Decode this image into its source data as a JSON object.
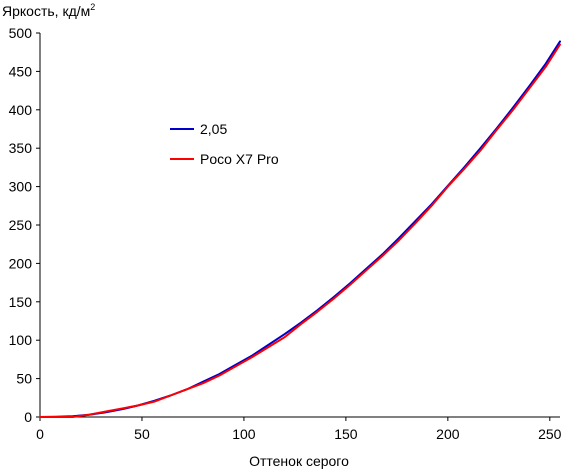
{
  "chart_data": {
    "type": "line",
    "ylabel": "Яркость, кд/м",
    "ylabel_sup": "2",
    "xlabel": "Оттенок серого",
    "xlim": [
      0,
      255
    ],
    "ylim": [
      0,
      500
    ],
    "x_ticks": [
      0,
      50,
      100,
      150,
      200,
      250
    ],
    "y_ticks": [
      0,
      50,
      100,
      150,
      200,
      250,
      300,
      350,
      400,
      450,
      500
    ],
    "grid": false,
    "legend_position": "upper-left",
    "series": [
      {
        "name": "2,05",
        "color": "#0000cc",
        "points": [
          [
            0,
            0
          ],
          [
            8,
            0.3
          ],
          [
            16,
            1
          ],
          [
            24,
            3
          ],
          [
            32,
            6
          ],
          [
            40,
            10
          ],
          [
            48,
            15
          ],
          [
            56,
            21
          ],
          [
            64,
            28
          ],
          [
            72,
            36
          ],
          [
            80,
            46
          ],
          [
            88,
            56
          ],
          [
            96,
            68
          ],
          [
            104,
            80
          ],
          [
            112,
            94
          ],
          [
            120,
            108
          ],
          [
            128,
            123
          ],
          [
            136,
            139
          ],
          [
            144,
            156
          ],
          [
            152,
            174
          ],
          [
            160,
            193
          ],
          [
            168,
            212
          ],
          [
            176,
            233
          ],
          [
            184,
            255
          ],
          [
            192,
            277
          ],
          [
            200,
            301
          ],
          [
            208,
            325
          ],
          [
            216,
            350
          ],
          [
            224,
            376
          ],
          [
            232,
            403
          ],
          [
            240,
            431
          ],
          [
            248,
            460
          ],
          [
            255,
            489
          ]
        ]
      },
      {
        "name": "Poco X7 Pro",
        "color": "#ff0000",
        "points": [
          [
            0,
            0
          ],
          [
            16,
            0
          ],
          [
            24,
            3
          ],
          [
            32,
            7
          ],
          [
            40,
            11
          ],
          [
            48,
            15
          ],
          [
            56,
            20
          ],
          [
            64,
            28
          ],
          [
            72,
            36
          ],
          [
            80,
            44
          ],
          [
            88,
            54
          ],
          [
            96,
            66
          ],
          [
            104,
            78
          ],
          [
            112,
            91
          ],
          [
            120,
            104
          ],
          [
            128,
            121
          ],
          [
            136,
            137
          ],
          [
            144,
            154
          ],
          [
            152,
            172
          ],
          [
            160,
            191
          ],
          [
            168,
            210
          ],
          [
            176,
            230
          ],
          [
            184,
            252
          ],
          [
            192,
            275
          ],
          [
            200,
            300
          ],
          [
            208,
            323
          ],
          [
            216,
            347
          ],
          [
            224,
            374
          ],
          [
            232,
            400
          ],
          [
            240,
            428
          ],
          [
            248,
            456
          ],
          [
            255,
            485
          ]
        ]
      }
    ]
  }
}
